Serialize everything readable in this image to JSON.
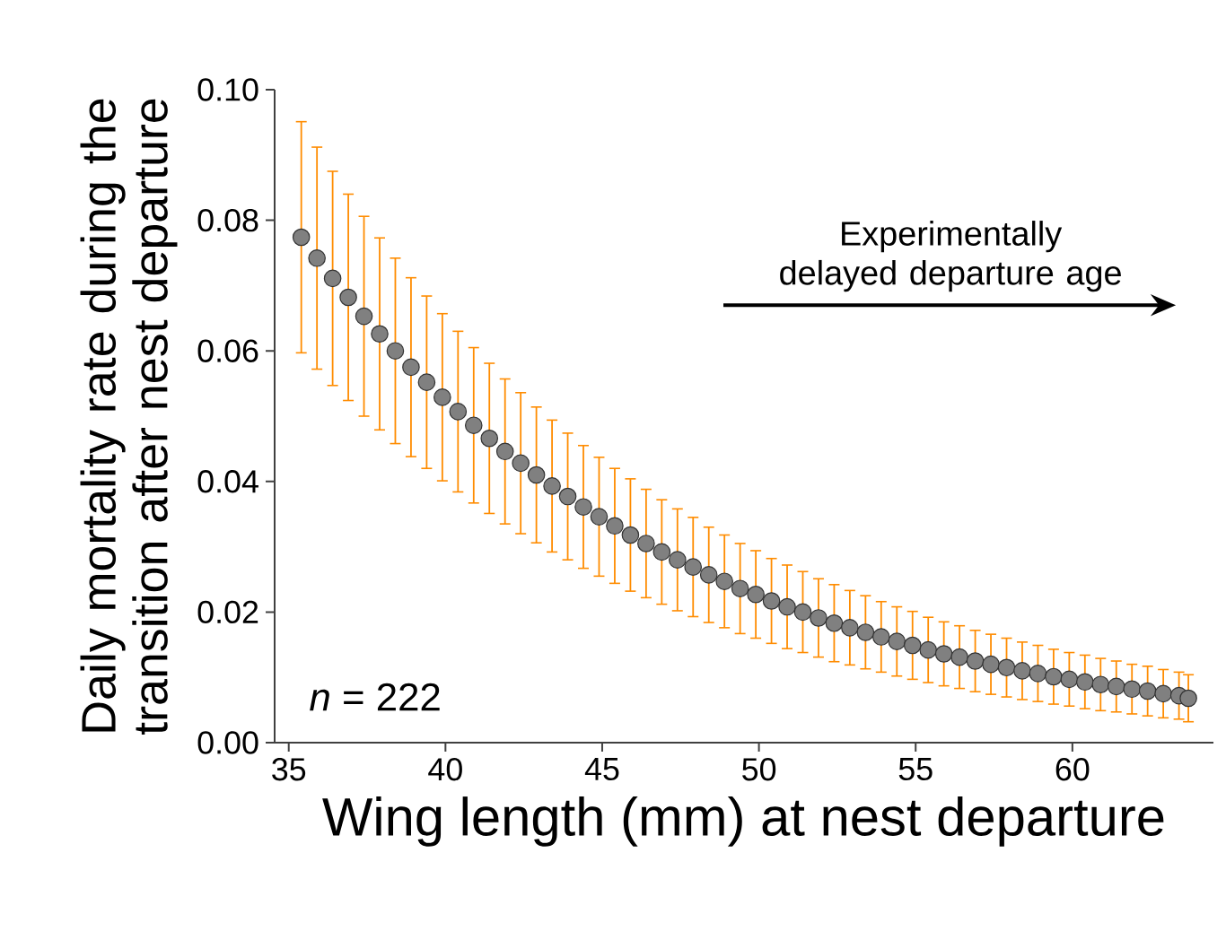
{
  "chart_data": {
    "type": "scatter",
    "xlabel": "Wing length (mm) at nest departure",
    "ylabel": "Daily mortality rate during the transition after nest departure",
    "annotations": [
      "*n* = 222",
      "Experimentally delayed departure age"
    ],
    "x": [
      35.4,
      35.9,
      36.4,
      36.9,
      37.4,
      37.9,
      38.4,
      38.9,
      39.4,
      39.9,
      40.4,
      40.9,
      41.4,
      41.9,
      42.4,
      42.9,
      43.4,
      43.9,
      44.4,
      44.9,
      45.4,
      45.9,
      46.4,
      46.9,
      47.4,
      47.9,
      48.4,
      48.9,
      49.4,
      49.9,
      50.4,
      50.9,
      51.4,
      51.9,
      52.4,
      52.9,
      53.4,
      53.9,
      54.4,
      54.9,
      55.4,
      55.9,
      56.4,
      56.9,
      57.4,
      57.9,
      58.4,
      58.9,
      59.4,
      59.9,
      60.4,
      60.9,
      61.4,
      61.9,
      62.4,
      62.9,
      63.4,
      63.7
    ],
    "series": [
      {
        "color": "#808080",
        "values": [
          0.0774,
          0.0742,
          0.0711,
          0.0682,
          0.0653,
          0.0626,
          0.06,
          0.0575,
          0.0552,
          0.0529,
          0.0507,
          0.0486,
          0.0466,
          0.0446,
          0.0428,
          0.041,
          0.0393,
          0.0377,
          0.0361,
          0.0346,
          0.0332,
          0.0318,
          0.0305,
          0.0292,
          0.028,
          0.0269,
          0.0257,
          0.0247,
          0.0236,
          0.0227,
          0.0217,
          0.0208,
          0.02,
          0.0191,
          0.0183,
          0.0176,
          0.0169,
          0.0162,
          0.0155,
          0.0149,
          0.0142,
          0.0136,
          0.0131,
          0.0125,
          0.012,
          0.0115,
          0.011,
          0.0106,
          0.0101,
          0.0097,
          0.0093,
          0.0089,
          0.0086,
          0.0082,
          0.0079,
          0.0075,
          0.0072,
          0.0068
        ],
        "errors": [
          0.0177,
          0.017,
          0.0164,
          0.0158,
          0.0153,
          0.0147,
          0.0142,
          0.0137,
          0.0132,
          0.0128,
          0.0123,
          0.0119,
          0.0115,
          0.0111,
          0.0108,
          0.0104,
          0.0101,
          0.0097,
          0.0094,
          0.0091,
          0.0088,
          0.0086,
          0.0083,
          0.008,
          0.0078,
          0.0076,
          0.0073,
          0.0071,
          0.0069,
          0.0067,
          0.0065,
          0.0064,
          0.0062,
          0.006,
          0.0059,
          0.0057,
          0.0056,
          0.0054,
          0.0053,
          0.0052,
          0.005,
          0.0049,
          0.0048,
          0.0047,
          0.0046,
          0.0045,
          0.0044,
          0.0043,
          0.0042,
          0.0041,
          0.0041,
          0.004,
          0.0039,
          0.0038,
          0.0038,
          0.0037,
          0.0036,
          0.0036
        ]
      }
    ],
    "xlim": [
      34.55,
      64.5
    ],
    "xticks": [
      35,
      40,
      45,
      50,
      55,
      60
    ],
    "ylim": [
      0,
      0.1
    ],
    "yticks": [
      {
        "value": 0,
        "label": "0.00"
      },
      {
        "value": 0.02,
        "label": "0.02"
      },
      {
        "value": 0.04,
        "label": "0.04"
      },
      {
        "value": 0.06,
        "label": "0.06"
      },
      {
        "value": 0.08,
        "label": "0.08"
      },
      {
        "value": 0.1,
        "label": "0.10"
      }
    ],
    "marker": "circle",
    "grid": false
  }
}
